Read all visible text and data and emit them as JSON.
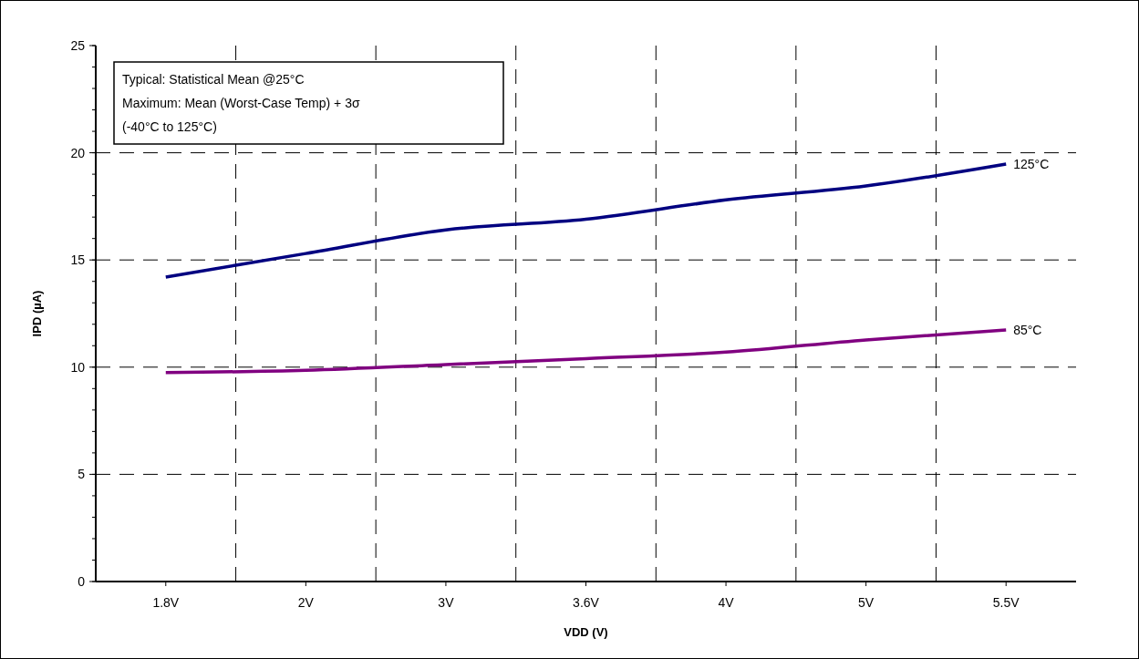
{
  "chart_data": {
    "type": "line",
    "xlabel": "VDD (V)",
    "ylabel": "IPD (µA)",
    "categories": [
      "1.8V",
      "2V",
      "3V",
      "3.6V",
      "4V",
      "5V",
      "5.5V"
    ],
    "series": [
      {
        "name": "125°C",
        "color": "#000080",
        "values": [
          14.2,
          15.3,
          16.4,
          16.9,
          17.8,
          18.45,
          19.47
        ]
      },
      {
        "name": "85°C",
        "color": "#800080",
        "values": [
          9.75,
          9.85,
          10.12,
          10.4,
          10.7,
          11.27,
          11.73
        ]
      }
    ],
    "ylim": [
      0,
      25
    ],
    "yticks": [
      0,
      5,
      10,
      15,
      20,
      25
    ],
    "grid": true,
    "marker": "none",
    "line_style": "solid",
    "annotations": [
      "Typical: Statistical Mean @25°C",
      "Maximum: Mean (Worst-Case Temp) + 3σ",
      "(-40°C to 125°C)"
    ]
  }
}
